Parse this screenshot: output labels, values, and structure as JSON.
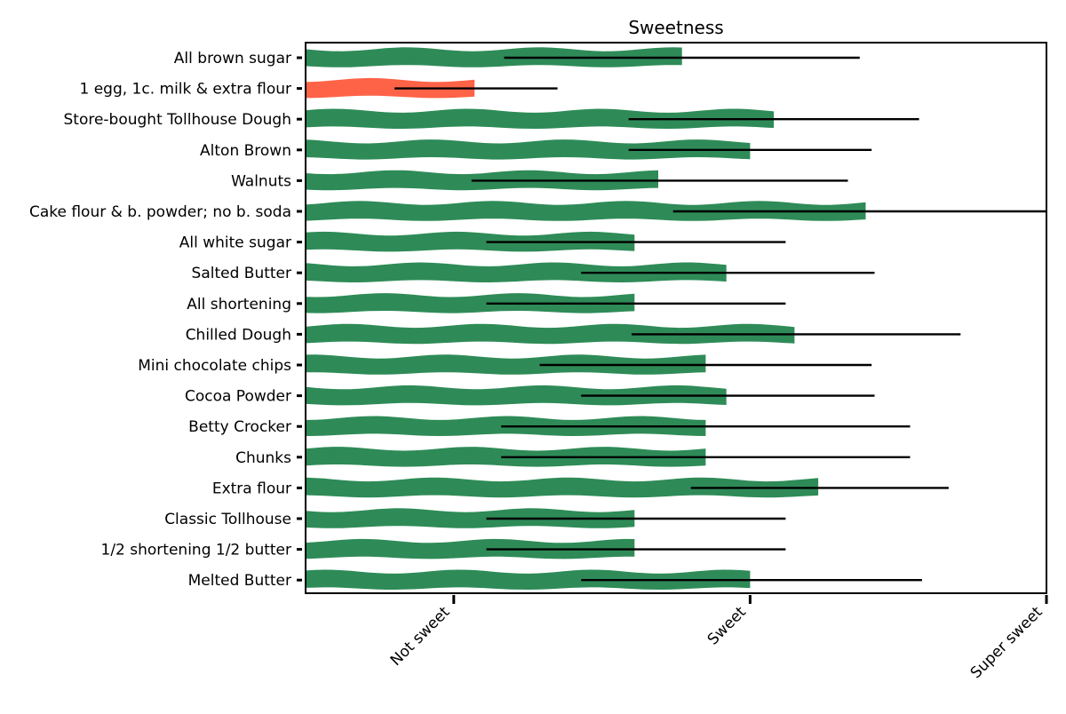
{
  "chart_data": {
    "type": "bar",
    "orientation": "horizontal",
    "title": "Sweetness",
    "xlabel": "",
    "ylabel": "",
    "xlim": [
      0,
      2.5
    ],
    "x_ticks": [
      {
        "value": 0.5,
        "label": "Not sweet"
      },
      {
        "value": 1.5,
        "label": "Sweet"
      },
      {
        "value": 2.5,
        "label": "Super sweet"
      }
    ],
    "grid": false,
    "legend": "none",
    "colors": {
      "default": "#2e8b57",
      "highlight": "#ff6347",
      "error_bar": "#000000"
    },
    "categories": [
      "All brown sugar",
      "1 egg, 1c. milk & extra flour",
      "Store-bought Tollhouse Dough",
      "Alton Brown",
      "Walnuts",
      "Cake flour & b. powder; no b. soda",
      "All white sugar",
      "Salted Butter",
      "All shortening",
      "Chilled Dough",
      "Mini chocolate chips",
      "Cocoa Powder",
      "Betty Crocker",
      "Chunks",
      "Extra flour",
      "Classic Tollhouse",
      "1/2 shortening 1/2 butter",
      "Melted Butter"
    ],
    "values": [
      1.27,
      0.57,
      1.58,
      1.5,
      1.19,
      1.89,
      1.11,
      1.42,
      1.11,
      1.65,
      1.35,
      1.42,
      1.35,
      1.35,
      1.73,
      1.11,
      1.11,
      1.5
    ],
    "error_low": [
      0.67,
      0.3,
      1.09,
      1.09,
      0.56,
      1.24,
      0.61,
      0.93,
      0.61,
      1.1,
      0.79,
      0.93,
      0.66,
      0.66,
      1.3,
      0.61,
      0.61,
      0.93
    ],
    "error_high": [
      1.87,
      0.85,
      2.07,
      1.91,
      1.83,
      2.5,
      1.62,
      1.92,
      1.62,
      2.21,
      1.91,
      1.92,
      2.04,
      2.04,
      2.17,
      1.62,
      1.62,
      2.08
    ],
    "highlight_index": 1
  }
}
